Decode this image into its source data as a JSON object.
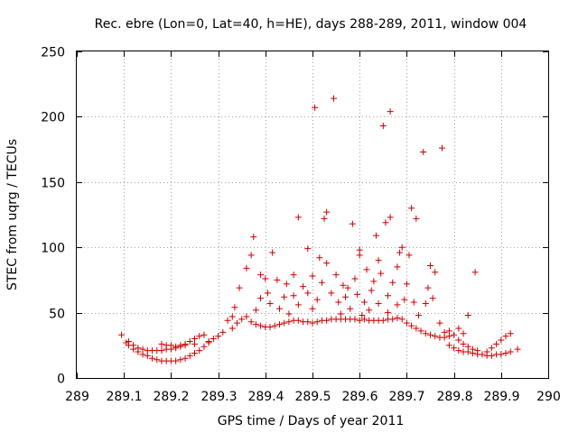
{
  "chart_data": {
    "type": "scatter",
    "title": "Rec. ebre (Lon=0, Lat=40, h=HE), days 288-289, 2011, window 004",
    "xlabel": "GPS time / Days of year 2011",
    "ylabel": "STEC from uqrg / TECUs",
    "xlim": [
      289,
      290
    ],
    "ylim": [
      0,
      250
    ],
    "x_ticks": [
      "289",
      "289.1",
      "289.2",
      "289.3",
      "289.4",
      "289.5",
      "289.6",
      "289.7",
      "289.8",
      "289.9",
      "290"
    ],
    "y_ticks": [
      "0",
      "50",
      "100",
      "150",
      "200",
      "250"
    ],
    "grid": true,
    "marker": "plus",
    "series": [
      {
        "color": "#cc0000",
        "points": [
          [
            289.095,
            33
          ],
          [
            289.105,
            27
          ],
          [
            289.11,
            25
          ],
          [
            289.12,
            22
          ],
          [
            289.13,
            20
          ],
          [
            289.14,
            18
          ],
          [
            289.15,
            17
          ],
          [
            289.16,
            15
          ],
          [
            289.17,
            14
          ],
          [
            289.18,
            13
          ],
          [
            289.19,
            13
          ],
          [
            289.2,
            13
          ],
          [
            289.21,
            13
          ],
          [
            289.22,
            14
          ],
          [
            289.23,
            15
          ],
          [
            289.24,
            17
          ],
          [
            289.25,
            19
          ],
          [
            289.26,
            21
          ],
          [
            289.27,
            24
          ],
          [
            289.28,
            27
          ],
          [
            289.29,
            30
          ],
          [
            289.11,
            28
          ],
          [
            289.12,
            25
          ],
          [
            289.13,
            23
          ],
          [
            289.14,
            22
          ],
          [
            289.15,
            21
          ],
          [
            289.16,
            21
          ],
          [
            289.17,
            21
          ],
          [
            289.18,
            21
          ],
          [
            289.19,
            22
          ],
          [
            289.2,
            22
          ],
          [
            289.21,
            23
          ],
          [
            289.22,
            24
          ],
          [
            289.23,
            26
          ],
          [
            289.24,
            28
          ],
          [
            289.25,
            30
          ],
          [
            289.26,
            32
          ],
          [
            289.27,
            33
          ],
          [
            289.18,
            26
          ],
          [
            289.19,
            25
          ],
          [
            289.2,
            25
          ],
          [
            289.21,
            24
          ],
          [
            289.22,
            25
          ],
          [
            289.23,
            25
          ],
          [
            289.25,
            26
          ],
          [
            289.28,
            28
          ],
          [
            289.3,
            32
          ],
          [
            289.31,
            35
          ],
          [
            289.32,
            44
          ],
          [
            289.33,
            47
          ],
          [
            289.33,
            38
          ],
          [
            289.34,
            42
          ],
          [
            289.35,
            45
          ],
          [
            289.36,
            47
          ],
          [
            289.37,
            43
          ],
          [
            289.38,
            41
          ],
          [
            289.39,
            40
          ],
          [
            289.4,
            39
          ],
          [
            289.41,
            39
          ],
          [
            289.42,
            40
          ],
          [
            289.43,
            41
          ],
          [
            289.44,
            42
          ],
          [
            289.45,
            43
          ],
          [
            289.46,
            44
          ],
          [
            289.47,
            44
          ],
          [
            289.48,
            43
          ],
          [
            289.49,
            43
          ],
          [
            289.5,
            42
          ],
          [
            289.51,
            43
          ],
          [
            289.52,
            44
          ],
          [
            289.53,
            44
          ],
          [
            289.54,
            45
          ],
          [
            289.55,
            45
          ],
          [
            289.56,
            45
          ],
          [
            289.57,
            45
          ],
          [
            289.58,
            45
          ],
          [
            289.59,
            45
          ],
          [
            289.6,
            44
          ],
          [
            289.61,
            45
          ],
          [
            289.62,
            44
          ],
          [
            289.63,
            44
          ],
          [
            289.64,
            44
          ],
          [
            289.65,
            44
          ],
          [
            289.66,
            45
          ],
          [
            289.67,
            45
          ],
          [
            289.68,
            46
          ],
          [
            289.69,
            45
          ],
          [
            289.7,
            42
          ],
          [
            289.71,
            40
          ],
          [
            289.72,
            38
          ],
          [
            289.73,
            36
          ],
          [
            289.74,
            34
          ],
          [
            289.75,
            33
          ],
          [
            289.76,
            32
          ],
          [
            289.77,
            31
          ],
          [
            289.78,
            31
          ],
          [
            289.79,
            32
          ],
          [
            289.8,
            33
          ],
          [
            289.81,
            29
          ],
          [
            289.82,
            26
          ],
          [
            289.83,
            24
          ],
          [
            289.84,
            22
          ],
          [
            289.85,
            21
          ],
          [
            289.79,
            25
          ],
          [
            289.8,
            23
          ],
          [
            289.81,
            21
          ],
          [
            289.82,
            20
          ],
          [
            289.83,
            20
          ],
          [
            289.84,
            19
          ],
          [
            289.85,
            18
          ],
          [
            289.86,
            18
          ],
          [
            289.87,
            17
          ],
          [
            289.88,
            17
          ],
          [
            289.89,
            18
          ],
          [
            289.9,
            18
          ],
          [
            289.91,
            19
          ],
          [
            289.92,
            20
          ],
          [
            289.935,
            22
          ],
          [
            289.87,
            20
          ],
          [
            289.88,
            23
          ],
          [
            289.89,
            26
          ],
          [
            289.9,
            29
          ],
          [
            289.91,
            32
          ],
          [
            289.92,
            34
          ],
          [
            289.335,
            54
          ],
          [
            289.345,
            69
          ],
          [
            289.36,
            84
          ],
          [
            289.37,
            94
          ],
          [
            289.375,
            108
          ],
          [
            289.38,
            52
          ],
          [
            289.39,
            61
          ],
          [
            289.39,
            79
          ],
          [
            289.4,
            76
          ],
          [
            289.405,
            65
          ],
          [
            289.41,
            57
          ],
          [
            289.415,
            96
          ],
          [
            289.425,
            75
          ],
          [
            289.43,
            53
          ],
          [
            289.44,
            62
          ],
          [
            289.445,
            72
          ],
          [
            289.45,
            49
          ],
          [
            289.46,
            79
          ],
          [
            289.46,
            63
          ],
          [
            289.47,
            56
          ],
          [
            289.47,
            123
          ],
          [
            289.48,
            70
          ],
          [
            289.49,
            99
          ],
          [
            289.49,
            65
          ],
          [
            289.5,
            53
          ],
          [
            289.5,
            78
          ],
          [
            289.505,
            207
          ],
          [
            289.51,
            60
          ],
          [
            289.515,
            92
          ],
          [
            289.52,
            73
          ],
          [
            289.525,
            122
          ],
          [
            289.53,
            88
          ],
          [
            289.53,
            127
          ],
          [
            289.54,
            65
          ],
          [
            289.545,
            214
          ],
          [
            289.55,
            79
          ],
          [
            289.555,
            58
          ],
          [
            289.56,
            49
          ],
          [
            289.565,
            71
          ],
          [
            289.57,
            62
          ],
          [
            289.575,
            69
          ],
          [
            289.58,
            53
          ],
          [
            289.585,
            118
          ],
          [
            289.59,
            76
          ],
          [
            289.595,
            64
          ],
          [
            289.6,
            98
          ],
          [
            289.6,
            94
          ],
          [
            289.605,
            48
          ],
          [
            289.61,
            58
          ],
          [
            289.615,
            83
          ],
          [
            289.62,
            52
          ],
          [
            289.625,
            67
          ],
          [
            289.63,
            74
          ],
          [
            289.635,
            109
          ],
          [
            289.64,
            90
          ],
          [
            289.64,
            57
          ],
          [
            289.645,
            80
          ],
          [
            289.65,
            193
          ],
          [
            289.655,
            119
          ],
          [
            289.66,
            50
          ],
          [
            289.66,
            63
          ],
          [
            289.665,
            123
          ],
          [
            289.665,
            204
          ],
          [
            289.67,
            73
          ],
          [
            289.68,
            85
          ],
          [
            289.68,
            56
          ],
          [
            289.685,
            96
          ],
          [
            289.69,
            100
          ],
          [
            289.695,
            60
          ],
          [
            289.7,
            72
          ],
          [
            289.705,
            94
          ],
          [
            289.71,
            130
          ],
          [
            289.715,
            58
          ],
          [
            289.72,
            122
          ],
          [
            289.725,
            48
          ],
          [
            289.735,
            173
          ],
          [
            289.74,
            57
          ],
          [
            289.745,
            69
          ],
          [
            289.75,
            86
          ],
          [
            289.755,
            61
          ],
          [
            289.76,
            81
          ],
          [
            289.77,
            42
          ],
          [
            289.775,
            176
          ],
          [
            289.78,
            35
          ],
          [
            289.79,
            36
          ],
          [
            289.81,
            38
          ],
          [
            289.82,
            34
          ],
          [
            289.83,
            48
          ],
          [
            289.845,
            81
          ]
        ]
      }
    ]
  }
}
